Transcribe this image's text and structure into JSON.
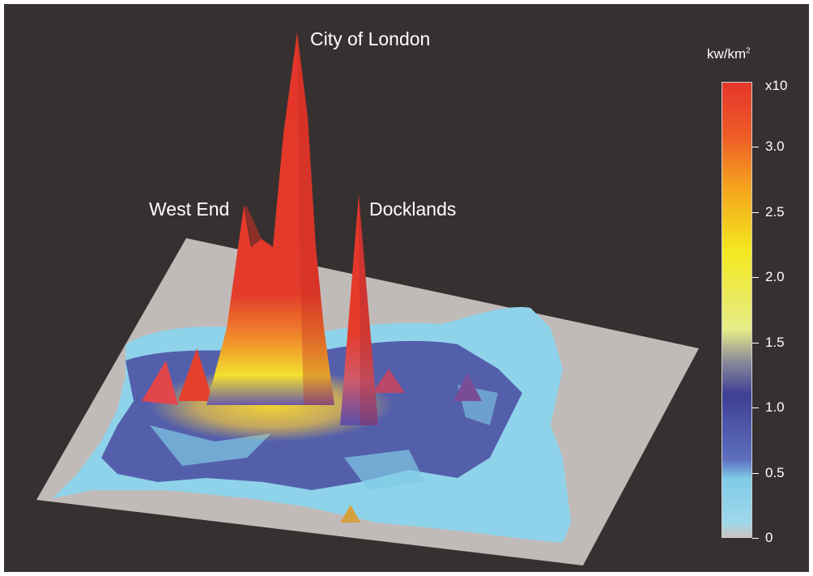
{
  "chart_data": {
    "type": "surface3d",
    "peaks": [
      {
        "label": "City of London",
        "value": 3.5
      },
      {
        "label": "West End",
        "value": 2.0
      },
      {
        "label": "Docklands",
        "value": 1.9
      }
    ],
    "colorbar": {
      "unit": "kw/km",
      "unit_superscript": "2",
      "multiplier_label": "x10",
      "range": [
        0,
        3.5
      ],
      "ticks": [
        {
          "value": 0,
          "label": "0"
        },
        {
          "value": 0.5,
          "label": "0.5"
        },
        {
          "value": 1.0,
          "label": "1.0"
        },
        {
          "value": 1.5,
          "label": "1.5"
        },
        {
          "value": 2.0,
          "label": "2.0"
        },
        {
          "value": 2.5,
          "label": "2.5"
        },
        {
          "value": 3.0,
          "label": "3.0"
        }
      ],
      "colors": [
        {
          "value": 0.0,
          "color": "#c9c3c1"
        },
        {
          "value": 0.12,
          "color": "#9ed8ec"
        },
        {
          "value": 0.45,
          "color": "#7fcbe6"
        },
        {
          "value": 0.6,
          "color": "#5d6fbe"
        },
        {
          "value": 1.1,
          "color": "#3f3f95"
        },
        {
          "value": 1.35,
          "color": "#8a8a9a"
        },
        {
          "value": 1.6,
          "color": "#e6ec88"
        },
        {
          "value": 2.2,
          "color": "#f3e81f"
        },
        {
          "value": 2.7,
          "color": "#f5a21e"
        },
        {
          "value": 3.1,
          "color": "#ed5a27"
        },
        {
          "value": 3.5,
          "color": "#e6362a"
        }
      ]
    },
    "colors": {
      "background": "#363130",
      "ground": "#c0bbb9",
      "peak": "#e4362a"
    }
  }
}
